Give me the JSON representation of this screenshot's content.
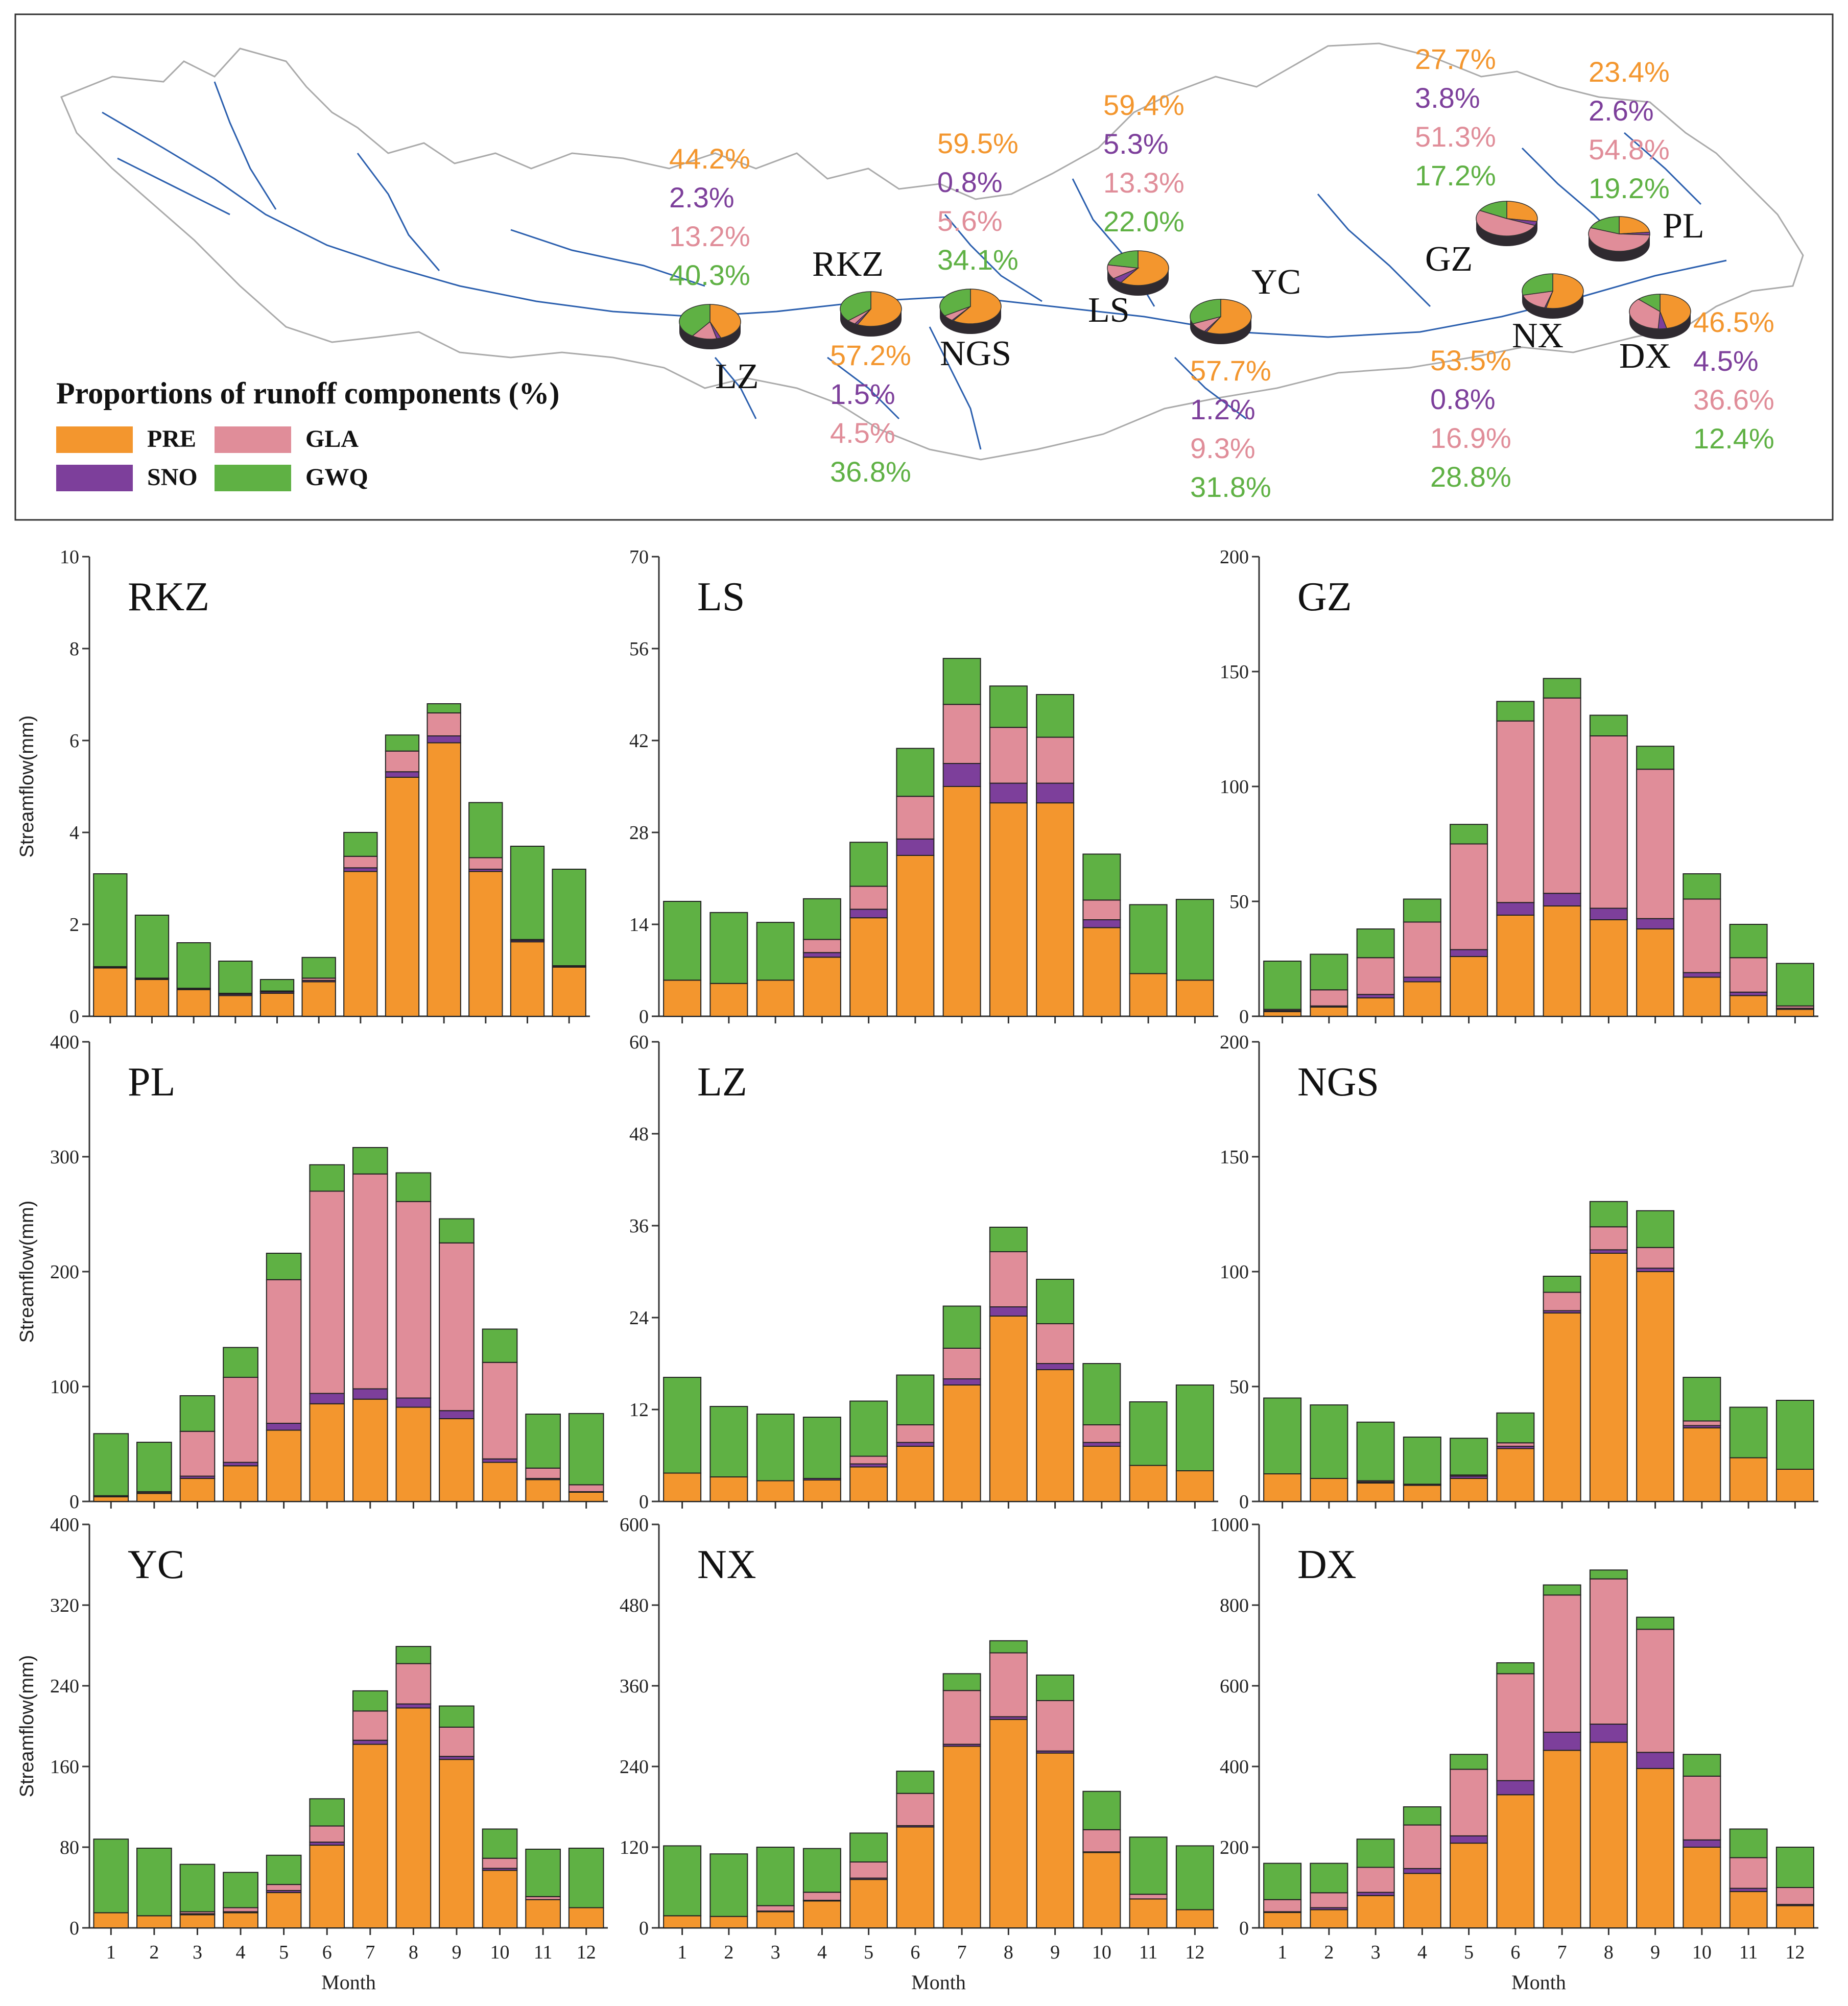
{
  "colors": {
    "PRE": "#f3962e",
    "SNO": "#7d3f9b",
    "GLA": "#e08d99",
    "GWQ": "#5fb144",
    "river": "#2b5fae",
    "basin": "#aaaaaa",
    "axis": "#333333"
  },
  "map": {
    "legend": {
      "title": "Proportions of runoff components (%)",
      "items": [
        {
          "key": "PRE",
          "label": "PRE"
        },
        {
          "key": "GLA",
          "label": "GLA"
        },
        {
          "key": "SNO",
          "label": "SNO"
        },
        {
          "key": "GWQ",
          "label": "GWQ"
        }
      ]
    },
    "sites": [
      {
        "name": "LZ",
        "values": [
          44.2,
          2.3,
          13.2,
          40.3
        ],
        "labels": [
          "44.2%",
          "2.3%",
          "13.2%",
          "40.3%"
        ]
      },
      {
        "name": "RKZ",
        "values": [
          57.2,
          1.5,
          4.5,
          36.8
        ],
        "labels": [
          "57.2%",
          "1.5%",
          "4.5%",
          "36.8%"
        ]
      },
      {
        "name": "NGS",
        "values": [
          59.5,
          0.8,
          5.6,
          34.1
        ],
        "labels": [
          "59.5%",
          "0.8%",
          "5.6%",
          "34.1%"
        ]
      },
      {
        "name": "LS",
        "values": [
          59.4,
          5.3,
          13.3,
          22.0
        ],
        "labels": [
          "59.4%",
          "5.3%",
          "13.3%",
          "22.0%"
        ]
      },
      {
        "name": "YC",
        "values": [
          57.7,
          1.2,
          9.3,
          31.8
        ],
        "labels": [
          "57.7%",
          "1.2%",
          "9.3%",
          "31.8%"
        ]
      },
      {
        "name": "GZ",
        "values": [
          27.7,
          3.8,
          51.3,
          17.2
        ],
        "labels": [
          "27.7%",
          "3.8%",
          "51.3%",
          "17.2%"
        ]
      },
      {
        "name": "NX",
        "values": [
          53.5,
          0.8,
          16.9,
          28.8
        ],
        "labels": [
          "53.5%",
          "0.8%",
          "16.9%",
          "28.8%"
        ]
      },
      {
        "name": "PL",
        "values": [
          23.4,
          2.6,
          54.8,
          19.2
        ],
        "labels": [
          "23.4%",
          "2.6%",
          "54.8%",
          "19.2%"
        ]
      },
      {
        "name": "DX",
        "values": [
          46.5,
          4.5,
          36.6,
          12.4
        ],
        "labels": [
          "46.5%",
          "4.5%",
          "36.6%",
          "12.4%"
        ]
      }
    ]
  },
  "chart_data": [
    {
      "type": "bar",
      "stacked": true,
      "title": "RKZ",
      "xlabel": "",
      "ylabel": "Streamflow(mm)",
      "ylim": [
        0,
        10
      ],
      "yticks": [
        0,
        2,
        4,
        6,
        8,
        10
      ],
      "ytick_labels": [
        "0",
        "2",
        "4",
        "6",
        "8",
        "10"
      ],
      "categories": [
        "1",
        "2",
        "3",
        "4",
        "5",
        "6",
        "7",
        "8",
        "9",
        "10",
        "11",
        "12"
      ],
      "series": [
        {
          "name": "PRE",
          "values": [
            1.05,
            0.8,
            0.58,
            0.45,
            0.5,
            0.75,
            3.15,
            5.2,
            5.95,
            3.15,
            1.62,
            1.07
          ]
        },
        {
          "name": "SNO",
          "values": [
            0.02,
            0.02,
            0.02,
            0.03,
            0.03,
            0.03,
            0.08,
            0.12,
            0.15,
            0.05,
            0.03,
            0.02
          ]
        },
        {
          "name": "GLA",
          "values": [
            0.01,
            0.01,
            0.01,
            0.02,
            0.02,
            0.05,
            0.25,
            0.45,
            0.5,
            0.25,
            0.02,
            0.01
          ]
        },
        {
          "name": "GWQ",
          "values": [
            2.02,
            1.37,
            0.99,
            0.7,
            0.25,
            0.45,
            0.52,
            0.35,
            0.2,
            1.2,
            2.03,
            2.1
          ]
        }
      ]
    },
    {
      "type": "bar",
      "stacked": true,
      "title": "LS",
      "xlabel": "",
      "ylabel": "",
      "ylim": [
        0,
        70
      ],
      "yticks": [
        0,
        14,
        28,
        42,
        56,
        70
      ],
      "ytick_labels": [
        "0",
        "14",
        "28",
        "42",
        "56",
        "70"
      ],
      "categories": [
        "1",
        "2",
        "3",
        "4",
        "5",
        "6",
        "7",
        "8",
        "9",
        "10",
        "11",
        "12"
      ],
      "series": [
        {
          "name": "PRE",
          "values": [
            5.5,
            5,
            5.5,
            9,
            15,
            24.5,
            35,
            32.5,
            32.5,
            13.5,
            6.5,
            5.5
          ]
        },
        {
          "name": "SNO",
          "values": [
            0,
            0,
            0,
            0.7,
            1.3,
            2.5,
            3.5,
            3,
            3,
            1.2,
            0,
            0
          ]
        },
        {
          "name": "GLA",
          "values": [
            0,
            0,
            0,
            2,
            3.5,
            6.5,
            9,
            8.5,
            7,
            3,
            0,
            0
          ]
        },
        {
          "name": "GWQ",
          "values": [
            12,
            10.8,
            8.8,
            6.2,
            6.7,
            7.3,
            7,
            6.3,
            6.5,
            7,
            10.5,
            12.3
          ]
        }
      ]
    },
    {
      "type": "bar",
      "stacked": true,
      "title": "GZ",
      "xlabel": "",
      "ylabel": "",
      "ylim": [
        0,
        200
      ],
      "yticks": [
        0,
        50,
        100,
        150,
        200
      ],
      "ytick_labels": [
        "0",
        "50",
        "100",
        "150",
        "200"
      ],
      "categories": [
        "1",
        "2",
        "3",
        "4",
        "5",
        "6",
        "7",
        "8",
        "9",
        "10",
        "11",
        "12"
      ],
      "series": [
        {
          "name": "PRE",
          "values": [
            2,
            4,
            8,
            15,
            26,
            44,
            48,
            42,
            38,
            17,
            9,
            3
          ]
        },
        {
          "name": "SNO",
          "values": [
            0.5,
            0.5,
            1.5,
            2,
            3,
            5.5,
            5.5,
            5,
            4.5,
            2,
            1.5,
            0.5
          ]
        },
        {
          "name": "GLA",
          "values": [
            0.5,
            7,
            16,
            24,
            46,
            79,
            85,
            75,
            65,
            32,
            15,
            1
          ]
        },
        {
          "name": "GWQ",
          "values": [
            21,
            15.5,
            12.5,
            10,
            8.5,
            8.5,
            8.5,
            9,
            10,
            11,
            14.5,
            18.5
          ]
        }
      ]
    },
    {
      "type": "bar",
      "stacked": true,
      "title": "PL",
      "xlabel": "",
      "ylabel": "Streamflow(mm)",
      "ylim": [
        0,
        400
      ],
      "yticks": [
        0,
        100,
        200,
        300,
        400
      ],
      "ytick_labels": [
        "0",
        "100",
        "200",
        "300",
        "400"
      ],
      "categories": [
        "1",
        "2",
        "3",
        "4",
        "5",
        "6",
        "7",
        "8",
        "9",
        "10",
        "11",
        "12"
      ],
      "series": [
        {
          "name": "PRE",
          "values": [
            4,
            7,
            20,
            31,
            62,
            85,
            89,
            82,
            72,
            34,
            19,
            8
          ]
        },
        {
          "name": "SNO",
          "values": [
            0.5,
            0.5,
            2,
            3,
            6,
            9,
            9,
            8,
            7,
            3,
            1,
            0.5
          ]
        },
        {
          "name": "GLA",
          "values": [
            0.5,
            1,
            39,
            74,
            125,
            176,
            187,
            171,
            146,
            84,
            9,
            6
          ]
        },
        {
          "name": "GWQ",
          "values": [
            54,
            43,
            31,
            26,
            23,
            23,
            23,
            25,
            21,
            29,
            47,
            62
          ]
        }
      ]
    },
    {
      "type": "bar",
      "stacked": true,
      "title": "LZ",
      "xlabel": "",
      "ylabel": "",
      "ylim": [
        0,
        60
      ],
      "yticks": [
        0,
        12,
        24,
        36,
        48,
        60
      ],
      "ytick_labels": [
        "0",
        "12",
        "24",
        "36",
        "48",
        "60"
      ],
      "categories": [
        "1",
        "2",
        "3",
        "4",
        "5",
        "6",
        "7",
        "8",
        "9",
        "10",
        "11",
        "12"
      ],
      "series": [
        {
          "name": "PRE",
          "values": [
            3.7,
            3.2,
            2.7,
            2.8,
            4.5,
            7.2,
            15.2,
            24.2,
            17.2,
            7.2,
            4.7,
            4
          ]
        },
        {
          "name": "SNO",
          "values": [
            0,
            0,
            0,
            0.2,
            0.4,
            0.5,
            0.8,
            1.2,
            0.8,
            0.5,
            0,
            0
          ]
        },
        {
          "name": "GLA",
          "values": [
            0,
            0,
            0,
            0,
            1,
            2.3,
            4,
            7.2,
            5.2,
            2.3,
            0,
            0
          ]
        },
        {
          "name": "GWQ",
          "values": [
            12.5,
            9.2,
            8.7,
            8,
            7.2,
            6.5,
            5.5,
            3.2,
            5.8,
            8,
            8.3,
            11.2
          ]
        }
      ]
    },
    {
      "type": "bar",
      "stacked": true,
      "title": "NGS",
      "xlabel": "",
      "ylabel": "",
      "ylim": [
        0,
        200
      ],
      "yticks": [
        0,
        50,
        100,
        150,
        200
      ],
      "ytick_labels": [
        "0",
        "50",
        "100",
        "150",
        "200"
      ],
      "categories": [
        "1",
        "2",
        "3",
        "4",
        "5",
        "6",
        "7",
        "8",
        "9",
        "10",
        "11",
        "12"
      ],
      "series": [
        {
          "name": "PRE",
          "values": [
            12,
            10,
            8,
            7,
            10,
            23,
            82,
            108,
            100,
            32,
            19,
            14
          ]
        },
        {
          "name": "SNO",
          "values": [
            0,
            0,
            0.5,
            0.5,
            1,
            1,
            1,
            1.5,
            1.5,
            1,
            0,
            0
          ]
        },
        {
          "name": "GLA",
          "values": [
            0,
            0,
            0.5,
            0,
            0.5,
            1.5,
            8,
            10,
            9,
            2,
            0,
            0
          ]
        },
        {
          "name": "GWQ",
          "values": [
            33,
            32,
            25.5,
            20.5,
            16,
            13,
            7,
            11,
            16,
            19,
            22,
            30
          ]
        }
      ]
    },
    {
      "type": "bar",
      "stacked": true,
      "title": "YC",
      "xlabel": "Month",
      "ylabel": "Streamflow(mm)",
      "ylim": [
        0,
        400
      ],
      "yticks": [
        0,
        80,
        160,
        240,
        320,
        400
      ],
      "ytick_labels": [
        "0",
        "80",
        "160",
        "240",
        "320",
        "400"
      ],
      "categories": [
        "1",
        "2",
        "3",
        "4",
        "5",
        "6",
        "7",
        "8",
        "9",
        "10",
        "11",
        "12"
      ],
      "series": [
        {
          "name": "PRE",
          "values": [
            15,
            12,
            13,
            15,
            35,
            82,
            182,
            218,
            167,
            57,
            28,
            20
          ]
        },
        {
          "name": "SNO",
          "values": [
            0,
            0,
            1,
            1,
            2,
            3,
            4,
            4,
            3,
            2,
            0,
            0
          ]
        },
        {
          "name": "GLA",
          "values": [
            0,
            0,
            2,
            4,
            6,
            16,
            29,
            40,
            29,
            10,
            3,
            0
          ]
        },
        {
          "name": "GWQ",
          "values": [
            73,
            67,
            47,
            35,
            29,
            27,
            20,
            17,
            21,
            29,
            47,
            59
          ]
        }
      ]
    },
    {
      "type": "bar",
      "stacked": true,
      "title": "NX",
      "xlabel": "Month",
      "ylabel": "",
      "ylim": [
        0,
        600
      ],
      "yticks": [
        0,
        120,
        240,
        360,
        480,
        600
      ],
      "ytick_labels": [
        "0",
        "120",
        "240",
        "360",
        "480",
        "600"
      ],
      "categories": [
        "1",
        "2",
        "3",
        "4",
        "5",
        "6",
        "7",
        "8",
        "9",
        "10",
        "11",
        "12"
      ],
      "series": [
        {
          "name": "PRE",
          "values": [
            18,
            17,
            24,
            40,
            72,
            150,
            270,
            310,
            260,
            112,
            43,
            27
          ]
        },
        {
          "name": "SNO",
          "values": [
            0,
            0,
            1,
            1,
            2,
            2,
            3,
            4,
            3,
            1,
            0,
            0
          ]
        },
        {
          "name": "GLA",
          "values": [
            0,
            0,
            8,
            12,
            24,
            48,
            80,
            95,
            75,
            33,
            7,
            0
          ]
        },
        {
          "name": "GWQ",
          "values": [
            104,
            93,
            87,
            65,
            43,
            33,
            25,
            18,
            38,
            57,
            85,
            95
          ]
        }
      ]
    },
    {
      "type": "bar",
      "stacked": true,
      "title": "DX",
      "xlabel": "Month",
      "ylabel": "",
      "ylim": [
        0,
        1000
      ],
      "yticks": [
        0,
        200,
        400,
        600,
        800,
        1000
      ],
      "ytick_labels": [
        "0",
        "200",
        "400",
        "600",
        "800",
        "1000"
      ],
      "categories": [
        "1",
        "2",
        "3",
        "4",
        "5",
        "6",
        "7",
        "8",
        "9",
        "10",
        "11",
        "12"
      ],
      "series": [
        {
          "name": "PRE",
          "values": [
            38,
            45,
            80,
            135,
            210,
            330,
            440,
            460,
            395,
            200,
            90,
            55
          ]
        },
        {
          "name": "SNO",
          "values": [
            2,
            5,
            8,
            12,
            18,
            35,
            45,
            45,
            40,
            18,
            8,
            3
          ]
        },
        {
          "name": "GLA",
          "values": [
            30,
            37,
            62,
            108,
            165,
            265,
            340,
            360,
            305,
            158,
            76,
            42
          ]
        },
        {
          "name": "GWQ",
          "values": [
            90,
            73,
            70,
            45,
            37,
            27,
            25,
            22,
            30,
            54,
            71,
            100
          ]
        }
      ]
    }
  ]
}
